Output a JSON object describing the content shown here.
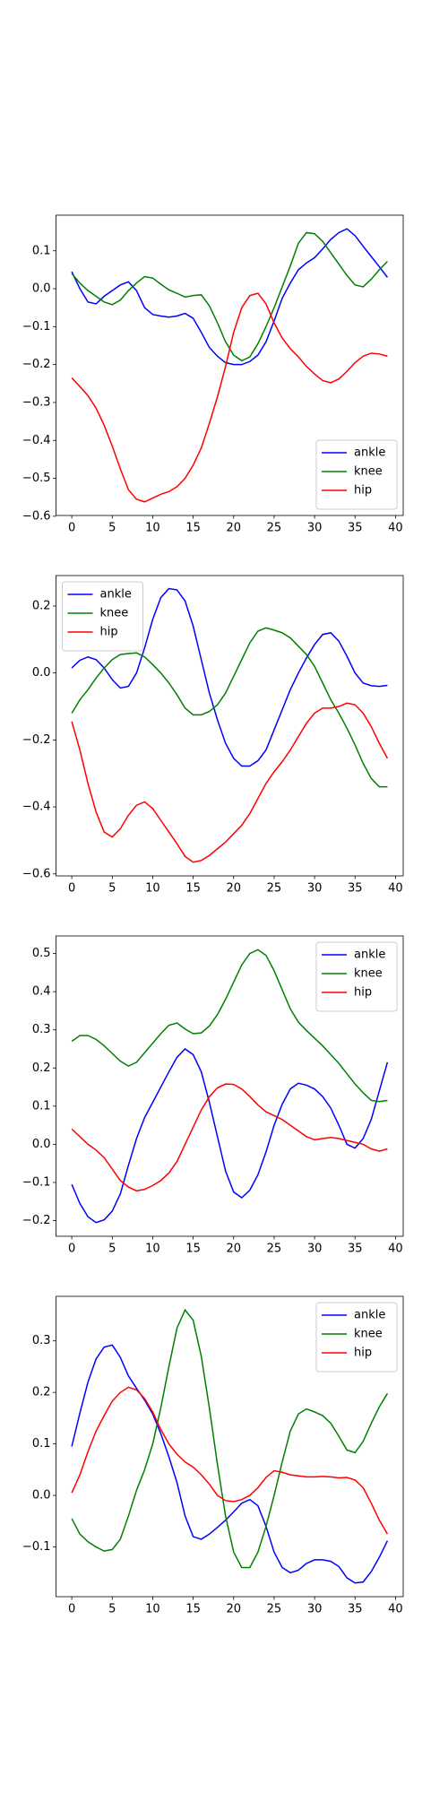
{
  "chart_data": [
    {
      "type": "line",
      "legend": "lower right",
      "x": [
        0,
        1,
        2,
        3,
        4,
        5,
        6,
        7,
        8,
        9,
        10,
        11,
        12,
        13,
        14,
        15,
        16,
        17,
        18,
        19,
        20,
        21,
        22,
        23,
        24,
        25,
        26,
        27,
        28,
        29,
        30,
        31,
        32,
        33,
        34,
        35,
        36,
        37,
        38,
        39
      ],
      "xlim": [
        -1.95,
        40.95
      ],
      "xticks": [
        0,
        5,
        10,
        15,
        20,
        25,
        30,
        35,
        40
      ],
      "ylim": [
        -0.598,
        0.194
      ],
      "yticks": [
        0.1,
        {
          "value": 0,
          "label": "0.0"
        },
        {
          "value": -0.1,
          "label": "−0.1"
        },
        {
          "value": -0.2,
          "label": "−0.2"
        },
        {
          "value": -0.3,
          "label": "−0.3"
        },
        {
          "value": -0.4,
          "label": "−0.4"
        },
        {
          "value": -0.5,
          "label": "−0.5"
        },
        {
          "value": -0.6,
          "label": "−0.6"
        }
      ],
      "series": [
        {
          "name": "ankle",
          "color": "#0000ff",
          "values": [
            0.045,
            0.0,
            -0.035,
            -0.04,
            -0.02,
            -0.005,
            0.01,
            0.018,
            -0.005,
            -0.05,
            -0.068,
            -0.072,
            -0.075,
            -0.072,
            -0.065,
            -0.078,
            -0.115,
            -0.155,
            -0.178,
            -0.195,
            -0.2,
            -0.2,
            -0.192,
            -0.175,
            -0.14,
            -0.085,
            -0.025,
            0.015,
            0.05,
            0.068,
            0.082,
            0.105,
            0.13,
            0.148,
            0.158,
            0.14,
            0.112,
            0.085,
            0.058,
            0.03
          ]
        },
        {
          "name": "knee",
          "color": "#008000",
          "values": [
            0.04,
            0.015,
            -0.005,
            -0.02,
            -0.035,
            -0.042,
            -0.03,
            -0.005,
            0.015,
            0.032,
            0.028,
            0.012,
            -0.003,
            -0.012,
            -0.022,
            -0.018,
            -0.016,
            -0.045,
            -0.09,
            -0.14,
            -0.175,
            -0.19,
            -0.18,
            -0.145,
            -0.1,
            -0.05,
            0.005,
            0.06,
            0.12,
            0.148,
            0.145,
            0.125,
            0.095,
            0.065,
            0.035,
            0.01,
            0.005,
            0.025,
            0.05,
            0.072
          ]
        },
        {
          "name": "hip",
          "color": "#ff0000",
          "values": [
            -0.235,
            -0.258,
            -0.282,
            -0.315,
            -0.36,
            -0.415,
            -0.475,
            -0.53,
            -0.555,
            -0.562,
            -0.552,
            -0.542,
            -0.535,
            -0.522,
            -0.5,
            -0.465,
            -0.42,
            -0.355,
            -0.285,
            -0.205,
            -0.115,
            -0.05,
            -0.018,
            -0.012,
            -0.04,
            -0.09,
            -0.13,
            -0.158,
            -0.18,
            -0.205,
            -0.225,
            -0.242,
            -0.248,
            -0.238,
            -0.218,
            -0.195,
            -0.178,
            -0.17,
            -0.172,
            -0.178
          ]
        }
      ]
    },
    {
      "type": "line",
      "legend": "upper left",
      "x": [
        0,
        1,
        2,
        3,
        4,
        5,
        6,
        7,
        8,
        9,
        10,
        11,
        12,
        13,
        14,
        15,
        16,
        17,
        18,
        19,
        20,
        21,
        22,
        23,
        24,
        25,
        26,
        27,
        28,
        29,
        30,
        31,
        32,
        33,
        34,
        35,
        36,
        37,
        38,
        39
      ],
      "xlim": [
        -1.95,
        40.95
      ],
      "xticks": [
        0,
        5,
        10,
        15,
        20,
        25,
        30,
        35,
        40
      ],
      "ylim": [
        -0.606,
        0.291
      ],
      "yticks": [
        0.2,
        {
          "value": 0,
          "label": "0.0"
        },
        {
          "value": -0.2,
          "label": "−0.2"
        },
        {
          "value": -0.4,
          "label": "−0.4"
        },
        {
          "value": -0.6,
          "label": "−0.6"
        }
      ],
      "series": [
        {
          "name": "ankle",
          "color": "#0000ff",
          "values": [
            0.015,
            0.038,
            0.048,
            0.04,
            0.015,
            -0.02,
            -0.045,
            -0.04,
            0.0,
            0.075,
            0.16,
            0.225,
            0.252,
            0.248,
            0.215,
            0.14,
            0.04,
            -0.06,
            -0.14,
            -0.21,
            -0.255,
            -0.278,
            -0.278,
            -0.262,
            -0.23,
            -0.17,
            -0.11,
            -0.05,
            0.0,
            0.045,
            0.085,
            0.115,
            0.12,
            0.095,
            0.05,
            0.0,
            -0.03,
            -0.038,
            -0.04,
            -0.037
          ]
        },
        {
          "name": "knee",
          "color": "#008000",
          "values": [
            -0.12,
            -0.08,
            -0.05,
            -0.015,
            0.015,
            0.04,
            0.055,
            0.058,
            0.06,
            0.048,
            0.025,
            0.0,
            -0.03,
            -0.065,
            -0.105,
            -0.125,
            -0.125,
            -0.115,
            -0.095,
            -0.06,
            -0.01,
            0.04,
            0.09,
            0.125,
            0.135,
            0.128,
            0.12,
            0.105,
            0.08,
            0.055,
            0.02,
            -0.03,
            -0.08,
            -0.12,
            -0.165,
            -0.215,
            -0.27,
            -0.315,
            -0.34,
            -0.34
          ]
        },
        {
          "name": "hip",
          "color": "#ff0000",
          "values": [
            -0.145,
            -0.23,
            -0.33,
            -0.415,
            -0.475,
            -0.49,
            -0.465,
            -0.425,
            -0.395,
            -0.385,
            -0.405,
            -0.44,
            -0.475,
            -0.51,
            -0.548,
            -0.565,
            -0.56,
            -0.545,
            -0.525,
            -0.505,
            -0.48,
            -0.455,
            -0.42,
            -0.375,
            -0.33,
            -0.295,
            -0.265,
            -0.23,
            -0.19,
            -0.15,
            -0.12,
            -0.105,
            -0.105,
            -0.1,
            -0.09,
            -0.095,
            -0.12,
            -0.16,
            -0.21,
            -0.255
          ]
        }
      ]
    },
    {
      "type": "line",
      "legend": "upper right",
      "x": [
        0,
        1,
        2,
        3,
        4,
        5,
        6,
        7,
        8,
        9,
        10,
        11,
        12,
        13,
        14,
        15,
        16,
        17,
        18,
        19,
        20,
        21,
        22,
        23,
        24,
        25,
        26,
        27,
        28,
        29,
        30,
        31,
        32,
        33,
        34,
        35,
        36,
        37,
        38,
        39
      ],
      "xlim": [
        -1.95,
        40.95
      ],
      "xticks": [
        0,
        5,
        10,
        15,
        20,
        25,
        30,
        35,
        40
      ],
      "ylim": [
        -0.241,
        0.546
      ],
      "yticks": [
        {
          "value": -0.2,
          "label": "−0.2"
        },
        {
          "value": -0.1,
          "label": "−0.1"
        },
        {
          "value": 0,
          "label": "0.0"
        },
        0.1,
        0.2,
        0.3,
        0.4,
        0.5
      ],
      "series": [
        {
          "name": "ankle",
          "color": "#0000ff",
          "values": [
            -0.105,
            -0.155,
            -0.19,
            -0.205,
            -0.198,
            -0.175,
            -0.13,
            -0.055,
            0.015,
            0.07,
            0.11,
            0.15,
            0.19,
            0.228,
            0.25,
            0.235,
            0.19,
            0.11,
            0.02,
            -0.07,
            -0.125,
            -0.14,
            -0.12,
            -0.08,
            -0.02,
            0.05,
            0.105,
            0.145,
            0.16,
            0.155,
            0.145,
            0.125,
            0.095,
            0.05,
            0.0,
            -0.01,
            0.015,
            0.065,
            0.14,
            0.215
          ]
        },
        {
          "name": "knee",
          "color": "#008000",
          "values": [
            0.27,
            0.285,
            0.285,
            0.275,
            0.258,
            0.238,
            0.218,
            0.205,
            0.215,
            0.24,
            0.265,
            0.29,
            0.312,
            0.318,
            0.302,
            0.29,
            0.292,
            0.31,
            0.34,
            0.38,
            0.425,
            0.47,
            0.5,
            0.51,
            0.495,
            0.455,
            0.405,
            0.355,
            0.32,
            0.298,
            0.278,
            0.258,
            0.235,
            0.212,
            0.185,
            0.158,
            0.135,
            0.115,
            0.112,
            0.115
          ]
        },
        {
          "name": "hip",
          "color": "#ff0000",
          "values": [
            0.04,
            0.02,
            0.0,
            -0.015,
            -0.035,
            -0.065,
            -0.095,
            -0.112,
            -0.122,
            -0.118,
            -0.108,
            -0.095,
            -0.075,
            -0.045,
            0.0,
            0.045,
            0.09,
            0.125,
            0.148,
            0.158,
            0.157,
            0.145,
            0.125,
            0.103,
            0.085,
            0.075,
            0.065,
            0.05,
            0.035,
            0.02,
            0.012,
            0.015,
            0.018,
            0.015,
            0.01,
            0.005,
            0.0,
            -0.012,
            -0.018,
            -0.012
          ]
        }
      ]
    },
    {
      "type": "line",
      "legend": "upper right",
      "x": [
        0,
        1,
        2,
        3,
        4,
        5,
        6,
        7,
        8,
        9,
        10,
        11,
        12,
        13,
        14,
        15,
        16,
        17,
        18,
        19,
        20,
        21,
        22,
        23,
        24,
        25,
        26,
        27,
        28,
        29,
        30,
        31,
        32,
        33,
        34,
        35,
        36,
        37,
        38,
        39
      ],
      "xlim": [
        -1.95,
        40.95
      ],
      "xticks": [
        0,
        5,
        10,
        15,
        20,
        25,
        30,
        35,
        40
      ],
      "ylim": [
        -0.1965,
        0.3865
      ],
      "yticks": [
        {
          "value": -0.1,
          "label": "−0.1"
        },
        {
          "value": 0,
          "label": "0.0"
        },
        0.1,
        0.2,
        0.3
      ],
      "series": [
        {
          "name": "ankle",
          "color": "#0000ff",
          "values": [
            0.095,
            0.16,
            0.22,
            0.265,
            0.288,
            0.292,
            0.268,
            0.232,
            0.208,
            0.185,
            0.158,
            0.12,
            0.075,
            0.025,
            -0.04,
            -0.08,
            -0.085,
            -0.075,
            -0.062,
            -0.048,
            -0.032,
            -0.015,
            -0.008,
            -0.02,
            -0.06,
            -0.11,
            -0.14,
            -0.15,
            -0.145,
            -0.132,
            -0.125,
            -0.125,
            -0.128,
            -0.138,
            -0.16,
            -0.17,
            -0.168,
            -0.148,
            -0.12,
            -0.088
          ]
        },
        {
          "name": "knee",
          "color": "#008000",
          "values": [
            -0.045,
            -0.075,
            -0.09,
            -0.1,
            -0.108,
            -0.105,
            -0.085,
            -0.04,
            0.01,
            0.05,
            0.1,
            0.17,
            0.25,
            0.325,
            0.36,
            0.34,
            0.27,
            0.17,
            0.06,
            -0.04,
            -0.11,
            -0.14,
            -0.14,
            -0.11,
            -0.06,
            0.0,
            0.065,
            0.125,
            0.158,
            0.168,
            0.162,
            0.155,
            0.14,
            0.115,
            0.088,
            0.083,
            0.105,
            0.14,
            0.172,
            0.198
          ]
        },
        {
          "name": "hip",
          "color": "#ff0000",
          "values": [
            0.005,
            0.04,
            0.085,
            0.125,
            0.155,
            0.183,
            0.2,
            0.21,
            0.205,
            0.188,
            0.162,
            0.128,
            0.1,
            0.08,
            0.065,
            0.055,
            0.04,
            0.022,
            0.0,
            -0.01,
            -0.012,
            -0.008,
            0.0,
            0.015,
            0.035,
            0.048,
            0.045,
            0.04,
            0.038,
            0.036,
            0.036,
            0.037,
            0.036,
            0.034,
            0.035,
            0.03,
            0.015,
            -0.015,
            -0.048,
            -0.075
          ]
        }
      ]
    }
  ]
}
